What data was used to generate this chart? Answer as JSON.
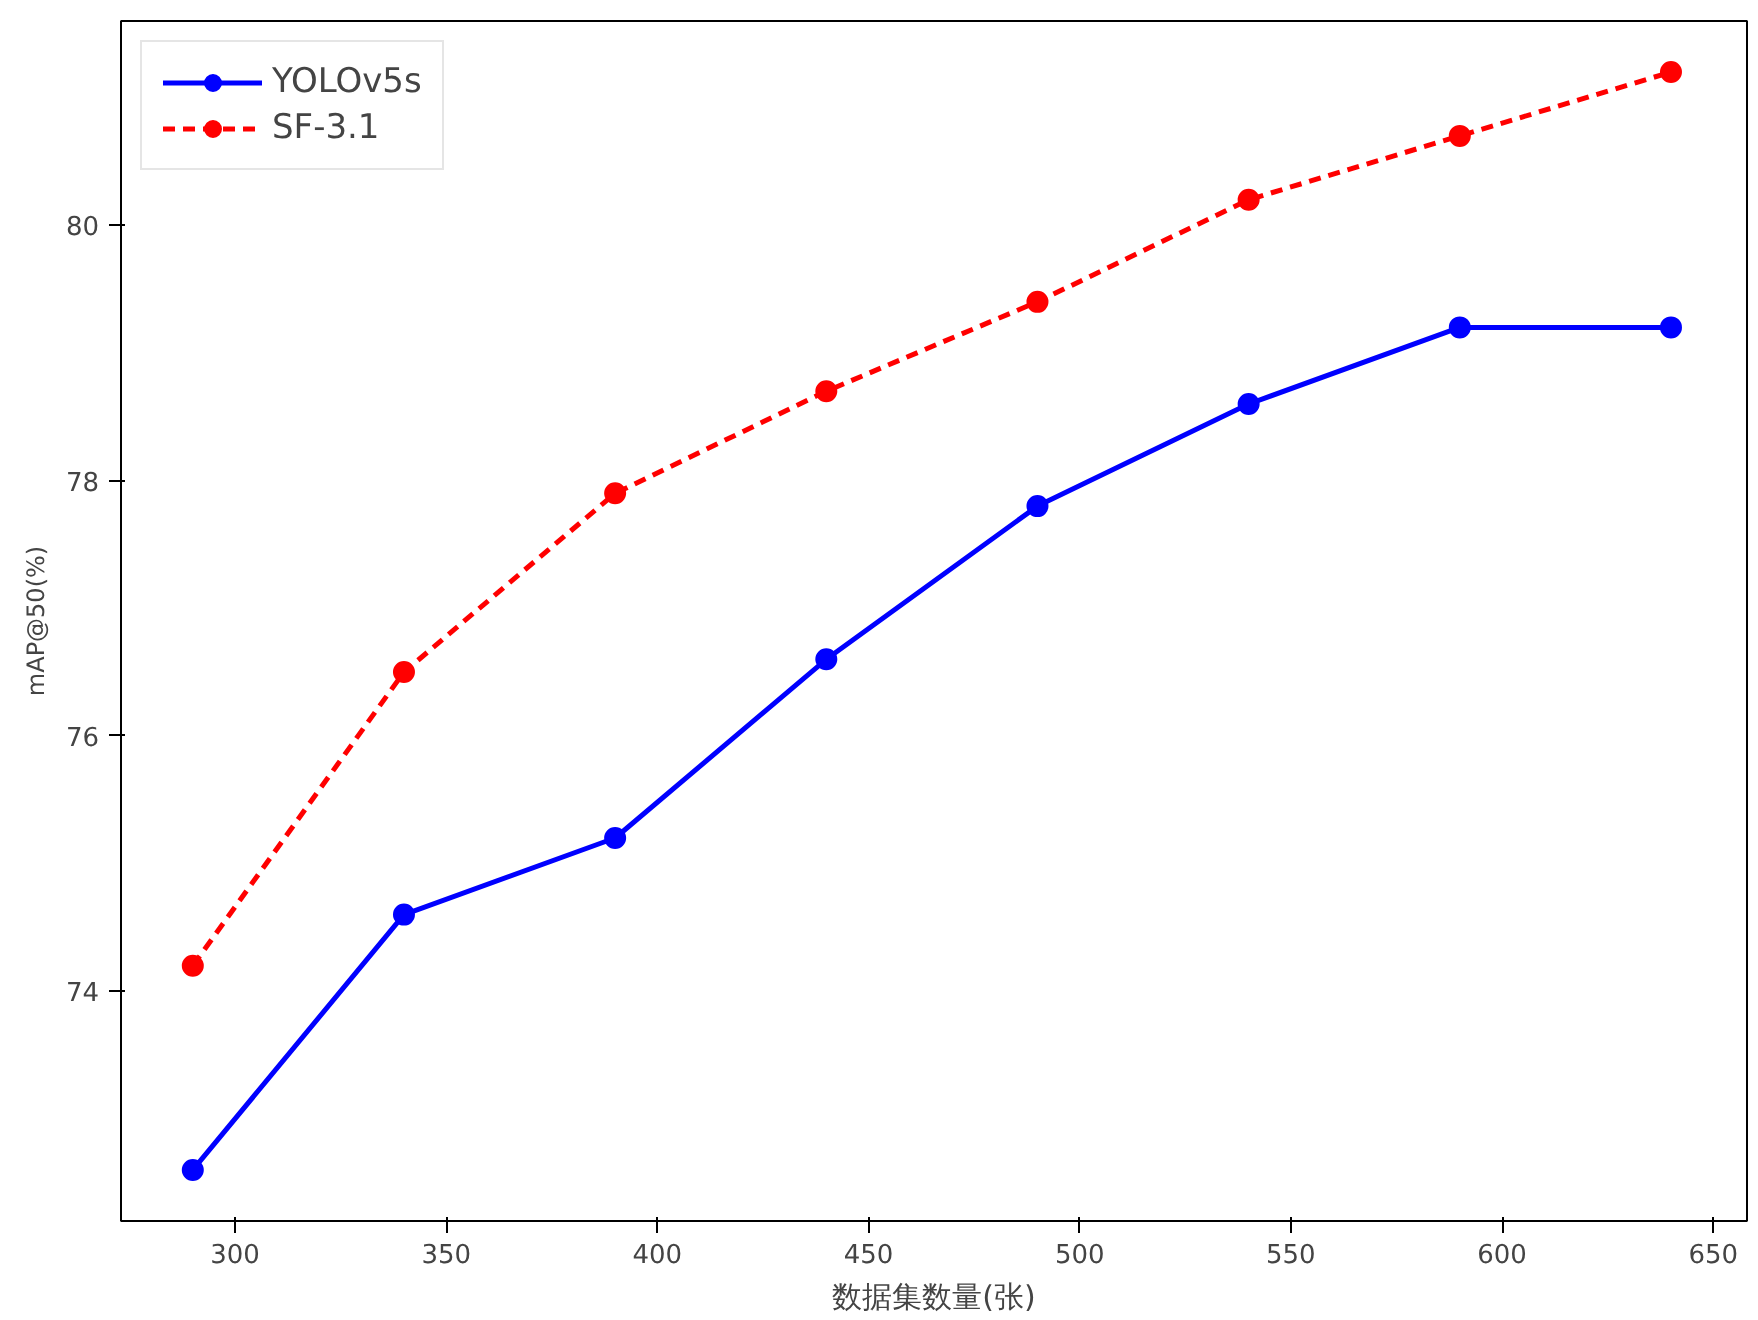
{
  "chart_data": {
    "type": "line",
    "xlabel": "数据集数量(张)",
    "ylabel": "mAP@50(%)",
    "x": [
      290,
      340,
      390,
      440,
      490,
      540,
      590,
      640
    ],
    "series": [
      {
        "name": "YOLOv5s",
        "color": "#0000ff",
        "values": [
          72.6,
          74.6,
          75.2,
          76.6,
          77.8,
          78.6,
          79.2,
          79.2
        ],
        "line_style": "solid"
      },
      {
        "name": "SF-3.1",
        "color": "#ff0000",
        "values": [
          74.2,
          76.5,
          77.9,
          78.7,
          79.4,
          80.2,
          80.7,
          81.2
        ],
        "line_style": "dashed"
      }
    ],
    "xlim": [
      273,
      658
    ],
    "ylim": [
      72.2,
      81.6
    ],
    "xticks": [
      300,
      350,
      400,
      450,
      500,
      550,
      600,
      650
    ],
    "yticks": [
      74,
      76,
      78,
      80
    ],
    "marker": "circle",
    "legend": "top left",
    "grid": false
  }
}
